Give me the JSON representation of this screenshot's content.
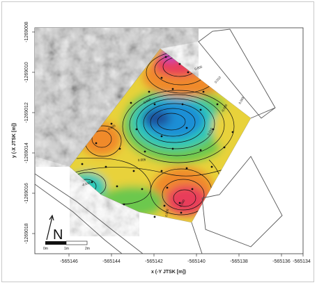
{
  "axes": {
    "xlabel": "x (-Y JTSK [m])",
    "ylabel": "y (-X JTSK [m])",
    "xticks": [
      "-565146",
      "-565144",
      "-565142",
      "-565140",
      "-565138",
      "-565136",
      "-565134"
    ],
    "yticks": [
      "-1269008",
      "-1269010",
      "-1269012",
      "-1269014",
      "-1269016",
      "-1269018"
    ]
  },
  "north_arrow": {
    "label": "N"
  },
  "scale_bar": {
    "labels": [
      "0m",
      "1m",
      "2m"
    ]
  },
  "contour_labels": [
    "0.005",
    "-0.010",
    "0.010",
    "-0.005",
    "0.005",
    "0.005",
    "0.010",
    "-0.005",
    "-0.010",
    "0.000",
    "0.000"
  ],
  "colors": {
    "low": "#1e8fd6",
    "mid_low": "#2fc8b8",
    "mid": "#6cc84e",
    "mid_high": "#e8d23a",
    "high": "#f08a2a",
    "peak": "#e83c5a",
    "extreme": "#b84cc8"
  }
}
